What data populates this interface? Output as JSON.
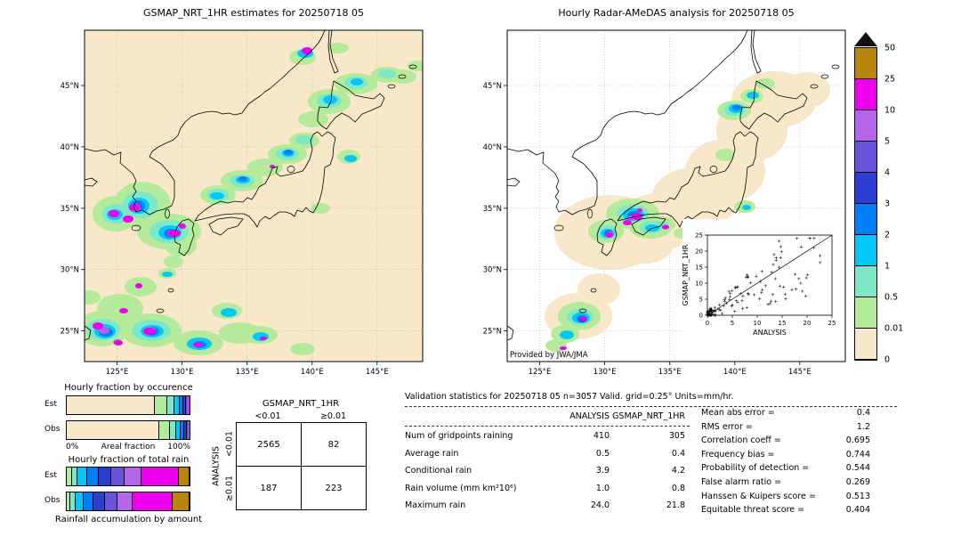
{
  "left_map": {
    "title": "GSMAP_NRT_1HR estimates for 20250718 05",
    "x_ticks": [
      "125°E",
      "130°E",
      "135°E",
      "140°E",
      "145°E"
    ],
    "y_ticks": [
      "45°N",
      "40°N",
      "35°N",
      "30°N",
      "25°N"
    ]
  },
  "right_map": {
    "title": "Hourly Radar-AMeDAS analysis for 20250718 05",
    "credit": "Provided by JWA/JMA",
    "x_ticks": [
      "125°E",
      "130°E",
      "135°E",
      "140°E",
      "145°E"
    ],
    "y_ticks": [
      "45°N",
      "40°N",
      "35°N",
      "30°N",
      "25°N"
    ],
    "inset": {
      "xlabel": "ANALYSIS",
      "ylabel": "GSMAP_NRT_1HR",
      "x_ticks": [
        "0",
        "5",
        "10",
        "15",
        "20",
        "25"
      ],
      "y_ticks": [
        "0",
        "5",
        "10",
        "15",
        "20",
        "25"
      ]
    }
  },
  "palette_low_to_high": [
    "#f8e7c8",
    "#b4eb9a",
    "#7ce8c8",
    "#00c8f8",
    "#0080f8",
    "#2a3fd0",
    "#6a52dc",
    "#b366e8",
    "#ee00ee",
    "#b8860b"
  ],
  "colorbar": {
    "tick_labels": [
      "50",
      "25",
      "10",
      "5",
      "4",
      "3",
      "2",
      "1",
      "0.5",
      "0.01",
      "0"
    ],
    "overflow_color": "#101010"
  },
  "occurrence_chart": {
    "title": "Hourly fraction by occurence",
    "axis_left": "0%",
    "axis_title": "Areal fraction",
    "axis_right": "100%",
    "rows": [
      {
        "label": "Est",
        "segments": [
          [
            0,
            72
          ],
          [
            1,
            10
          ],
          [
            2,
            6
          ],
          [
            3,
            4
          ],
          [
            4,
            3
          ],
          [
            5,
            2
          ],
          [
            6,
            1.5
          ],
          [
            7,
            1
          ],
          [
            8,
            0.4
          ],
          [
            9,
            0.1
          ]
        ]
      },
      {
        "label": "Obs",
        "segments": [
          [
            0,
            75
          ],
          [
            1,
            9
          ],
          [
            2,
            5
          ],
          [
            3,
            4
          ],
          [
            4,
            3
          ],
          [
            5,
            2
          ],
          [
            6,
            1
          ],
          [
            7,
            0.7
          ],
          [
            8,
            0.3
          ]
        ]
      }
    ]
  },
  "total_rain_chart": {
    "title": "Hourly fraction of total rain",
    "footer": "Rainfall accumulation by amount",
    "rows": [
      {
        "label": "Est",
        "segments": [
          [
            1,
            4
          ],
          [
            2,
            5
          ],
          [
            3,
            8
          ],
          [
            4,
            9
          ],
          [
            5,
            10
          ],
          [
            6,
            11
          ],
          [
            7,
            14
          ],
          [
            8,
            30
          ],
          [
            9,
            9
          ]
        ]
      },
      {
        "label": "Obs",
        "segments": [
          [
            1,
            3
          ],
          [
            2,
            4
          ],
          [
            3,
            7
          ],
          [
            4,
            8
          ],
          [
            5,
            9
          ],
          [
            6,
            10
          ],
          [
            7,
            13
          ],
          [
            8,
            32
          ],
          [
            9,
            14
          ]
        ]
      }
    ]
  },
  "contingency": {
    "title": "GSMAP_NRT_1HR",
    "col_labels": [
      "<0.01",
      "≥0.01"
    ],
    "row_axis_label": "ANALYSIS",
    "row_labels": [
      "<0.01",
      "≥0.01"
    ],
    "cells": [
      [
        "2565",
        "82"
      ],
      [
        "187",
        "223"
      ]
    ]
  },
  "stats": {
    "header": "Validation statistics for 20250718 05  n=3057 Valid. grid=0.25° Units=mm/hr.",
    "col1": "ANALYSIS",
    "col2": "GSMAP_NRT_1HR",
    "rows": [
      {
        "label": "Num of gridpoints raining",
        "a": "410",
        "g": "305"
      },
      {
        "label": "Average rain",
        "a": "0.5",
        "g": "0.4"
      },
      {
        "label": "Conditional rain",
        "a": "3.9",
        "g": "4.2"
      },
      {
        "label": "Rain volume (mm km²10⁶)",
        "a": "1.0",
        "g": "0.8"
      },
      {
        "label": "Maximum rain",
        "a": "24.0",
        "g": "21.8"
      }
    ],
    "metrics": [
      {
        "label": "Mean abs error",
        "value": "0.4"
      },
      {
        "label": "RMS error",
        "value": "1.2"
      },
      {
        "label": "Correlation coeff",
        "value": "0.695"
      },
      {
        "label": "Frequency bias",
        "value": "0.744"
      },
      {
        "label": "Probability of detection",
        "value": "0.544"
      },
      {
        "label": "False alarm ratio",
        "value": "0.269"
      },
      {
        "label": "Hanssen & Kuipers score",
        "value": "0.513"
      },
      {
        "label": "Equitable threat score",
        "value": "0.404"
      }
    ]
  },
  "chart_data": [
    {
      "type": "heatmap",
      "title": "GSMAP_NRT_1HR estimates for 20250718 05",
      "xlabel": "Longitude",
      "ylabel": "Latitude",
      "x_ticks": [
        "125°E",
        "130°E",
        "135°E",
        "140°E",
        "145°E"
      ],
      "y_ticks": [
        "25°N",
        "30°N",
        "35°N",
        "40°N",
        "45°N"
      ],
      "units": "mm/hr",
      "levels": [
        0,
        0.01,
        0.5,
        1,
        2,
        3,
        4,
        5,
        10,
        25,
        50
      ],
      "legend_position": "right",
      "grid": true,
      "description": "Satellite rainfall estimates over Japan/Korea region; heavy cells (magenta, 10-25 mm/hr) near Korea, Kyushu, northern Honshu and south of 27°N"
    },
    {
      "type": "heatmap",
      "title": "Hourly Radar-AMeDAS analysis for 20250718 05",
      "xlabel": "Longitude",
      "ylabel": "Latitude",
      "x_ticks": [
        "125°E",
        "130°E",
        "135°E",
        "140°E",
        "145°E"
      ],
      "y_ticks": [
        "25°N",
        "30°N",
        "35°N",
        "40°N",
        "45°N"
      ],
      "units": "mm/hr",
      "levels": [
        0,
        0.01,
        0.5,
        1,
        2,
        3,
        4,
        5,
        10,
        25,
        50
      ],
      "annotation": "Provided by JWA/JMA",
      "description": "Radar-AMeDAS analysis; coverage area shaded 0 mm/hr; rain over western Honshu, western Kyushu, Hokkaido west coast and Okinawa"
    },
    {
      "type": "scatter",
      "title": "GSMAP_NRT_1HR vs ANALYSIS inset",
      "xlabel": "ANALYSIS",
      "ylabel": "GSMAP_NRT_1HR",
      "xlim": [
        0,
        25
      ],
      "ylim": [
        0,
        25
      ],
      "x_ticks": [
        0,
        5,
        10,
        15,
        20,
        25
      ],
      "y_ticks": [
        0,
        5,
        10,
        15,
        20,
        25
      ],
      "identity_line": true,
      "marker": "+",
      "description": "Dense cluster of points below ~5 mm/hr with scatter up to ~23 mm/hr, mostly below the 1:1 line"
    },
    {
      "type": "bar",
      "subtype": "stacked_horizontal",
      "title": "Hourly fraction by occurence",
      "categories": [
        "Est",
        "Obs"
      ],
      "xlabel": "Areal fraction",
      "xlim_pct": [
        0,
        100
      ],
      "est_segments_pct": [
        72,
        10,
        6,
        4,
        3,
        2,
        1.5,
        1,
        0.4,
        0.1
      ],
      "obs_segments_pct": [
        75,
        9,
        5,
        4,
        3,
        2,
        1,
        0.7,
        0.3
      ],
      "note": "segments colored by rain-rate class low to high; values estimated from pixels"
    },
    {
      "type": "bar",
      "subtype": "stacked_horizontal",
      "title": "Hourly fraction of total rain",
      "categories": [
        "Est",
        "Obs"
      ],
      "xlabel": "Rainfall accumulation by amount",
      "xlim_pct": [
        0,
        100
      ],
      "est_segments_pct": [
        4,
        5,
        8,
        9,
        10,
        11,
        14,
        30,
        9
      ],
      "obs_segments_pct": [
        3,
        4,
        7,
        8,
        9,
        10,
        13,
        32,
        14
      ],
      "note": "segments colored by rain-rate class low to high; values estimated from pixels"
    },
    {
      "type": "table",
      "title": "Contingency table GSMAP_NRT_1HR vs ANALYSIS (n=3057)",
      "columns": [
        "GSMAP_NRT_1HR <0.01",
        "GSMAP_NRT_1HR ≥0.01"
      ],
      "rows": [
        "ANALYSIS <0.01",
        "ANALYSIS ≥0.01"
      ],
      "values": [
        [
          2565,
          82
        ],
        [
          187,
          223
        ]
      ]
    },
    {
      "type": "table",
      "title": "Validation statistics for 20250718 05 n=3057 Valid. grid=0.25° Units=mm/hr.",
      "columns": [
        "ANALYSIS",
        "GSMAP_NRT_1HR"
      ],
      "rows": [
        [
          "Num of gridpoints raining",
          410,
          305
        ],
        [
          "Average rain",
          0.5,
          0.4
        ],
        [
          "Conditional rain",
          3.9,
          4.2
        ],
        [
          "Rain volume (mm km²10⁶)",
          1.0,
          0.8
        ],
        [
          "Maximum rain",
          24.0,
          21.8
        ]
      ],
      "metrics": {
        "Mean abs error": 0.4,
        "RMS error": 1.2,
        "Correlation coeff": 0.695,
        "Frequency bias": 0.744,
        "Probability of detection": 0.544,
        "False alarm ratio": 0.269,
        "Hanssen & Kuipers score": 0.513,
        "Equitable threat score": 0.404
      }
    }
  ]
}
